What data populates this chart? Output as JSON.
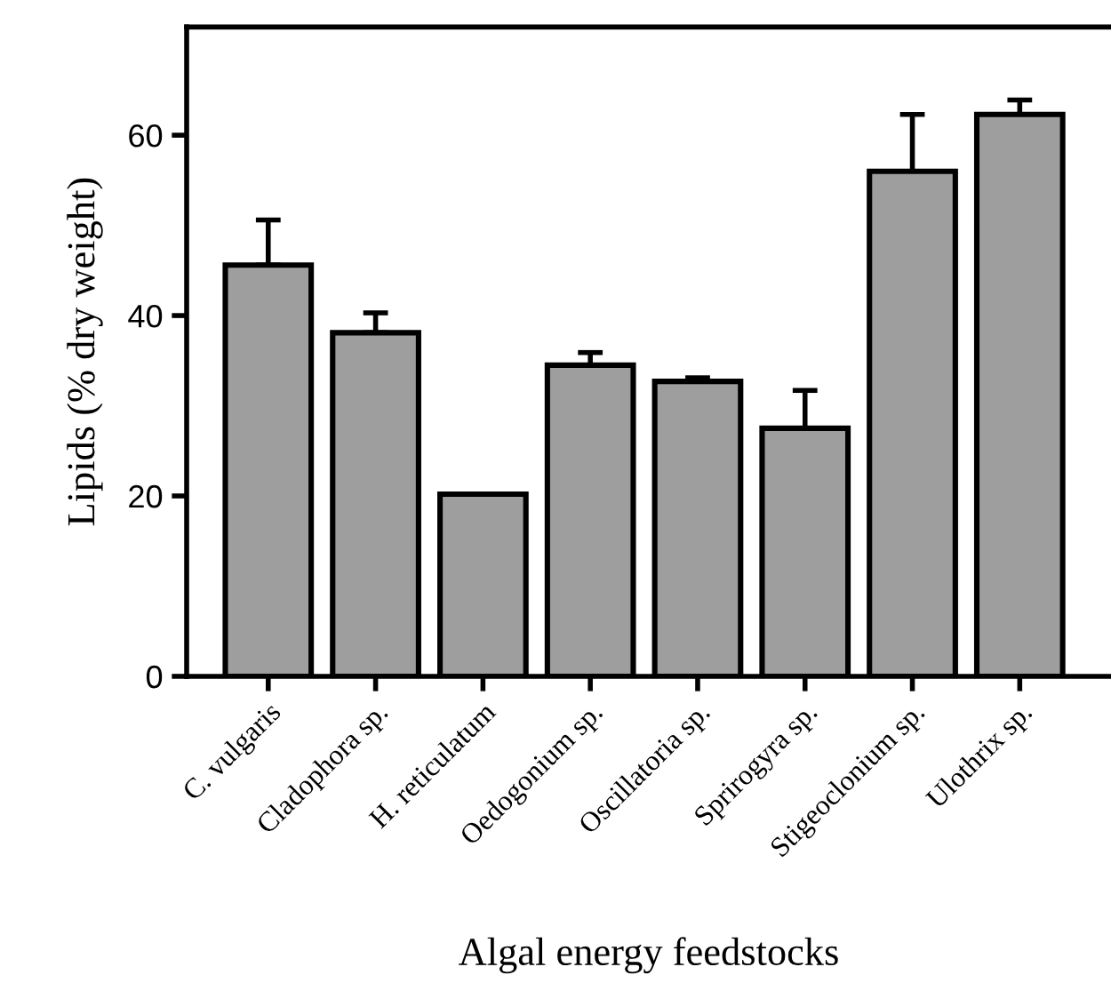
{
  "chart_data": {
    "type": "bar",
    "xlabel": "Algal energy feedstocks",
    "ylabel": "Lipids (% dry weight)",
    "categories": [
      "C. vulgaris",
      "Cladophora sp.",
      "H. reticulatum",
      "Oedogonium sp.",
      "Oscillatoria sp.",
      "Sprirogyra sp.",
      "Stigeoclonium sp.",
      "Ulothrix sp."
    ],
    "values": [
      45.6,
      38.1,
      20.2,
      34.5,
      32.7,
      27.5,
      56.0,
      62.3
    ],
    "errors": [
      [
        45.6,
        50.6
      ],
      [
        38.1,
        40.3
      ],
      null,
      [
        34.5,
        35.9
      ],
      [
        32.7,
        33.1
      ],
      [
        27.5,
        31.7
      ],
      [
        56.0,
        62.3
      ],
      [
        62.3,
        63.9
      ]
    ],
    "color": "#9d9e9d",
    "ylim": [
      0,
      72
    ],
    "yticks": [
      0,
      20,
      40,
      60
    ],
    "grid": false,
    "legend": false
  }
}
